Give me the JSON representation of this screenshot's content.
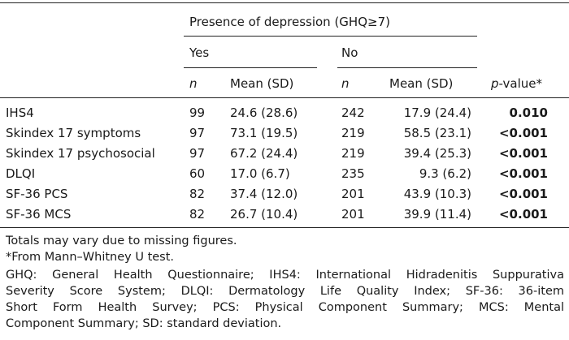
{
  "table": {
    "header": {
      "group": "Presence of depression (GHQ≥7)",
      "yes": "Yes",
      "no": "No",
      "n": "n",
      "mean_sd": "Mean (SD)",
      "pvalue_italic": "p",
      "pvalue_rest": "-value*"
    },
    "rows": [
      {
        "label": "IHS4",
        "yes_n": "99",
        "yes_mean": "24.6 (28.6)",
        "no_n": "242",
        "no_mean": "17.9 (24.4)",
        "p": "0.010"
      },
      {
        "label": "Skindex 17 symptoms",
        "yes_n": "97",
        "yes_mean": "73.1 (19.5)",
        "no_n": "219",
        "no_mean": "58.5 (23.1)",
        "p": "<0.001"
      },
      {
        "label": "Skindex 17 psychosocial",
        "yes_n": "97",
        "yes_mean": "67.2 (24.4)",
        "no_n": "219",
        "no_mean": "39.4 (25.3)",
        "p": "<0.001"
      },
      {
        "label": "DLQI",
        "yes_n": "60",
        "yes_mean": "17.0 (6.7)",
        "no_n": "235",
        "no_mean": "9.3 (6.2)",
        "p": "<0.001"
      },
      {
        "label": "SF-36 PCS",
        "yes_n": "82",
        "yes_mean": "37.4 (12.0)",
        "no_n": "201",
        "no_mean": "43.9 (10.3)",
        "p": "<0.001"
      },
      {
        "label": "SF-36 MCS",
        "yes_n": "82",
        "yes_mean": "26.7 (10.4)",
        "no_n": "201",
        "no_mean": "39.9 (11.4)",
        "p": "<0.001"
      }
    ]
  },
  "footnotes": {
    "totals": "Totals may vary due to missing figures.",
    "mann_whitney": "*From Mann–Whitney U test.",
    "abbrev_lines": [
      "GHQ: General Health Questionnaire; IHS4: International Hidradenitis Suppurativa",
      "Severity Score System; DLQI: Dermatology Life Quality Index; SF-36: 36-item",
      "Short Form Health Survey; PCS: Physical Component Summary; MCS: Mental",
      "Component Summary; SD: standard deviation."
    ]
  }
}
